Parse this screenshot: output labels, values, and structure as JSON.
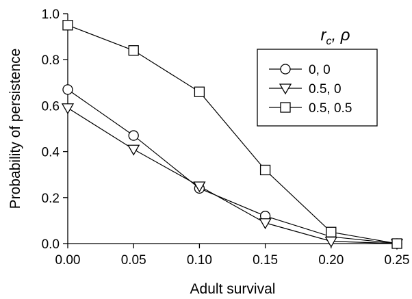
{
  "chart_data": {
    "type": "line",
    "title": "",
    "xlabel": "Adult survival",
    "ylabel": "Probability of persistence",
    "x": [
      0.0,
      0.05,
      0.1,
      0.15,
      0.2,
      0.25
    ],
    "x_tick_labels": [
      "0.00",
      "0.05",
      "0.10",
      "0.15",
      "0.20",
      "0.25"
    ],
    "xlim": [
      0.0,
      0.25
    ],
    "y_ticks": [
      0.0,
      0.2,
      0.4,
      0.6,
      0.8,
      1.0
    ],
    "y_tick_labels": [
      "0.0",
      "0.2",
      "0.4",
      "0.6",
      "0.8",
      "1.0"
    ],
    "ylim": [
      0.0,
      1.0
    ],
    "grid": false,
    "legend": {
      "title_r": "r",
      "title_sub": "c",
      "title_rest": ", ρ",
      "placement": "top-right"
    },
    "series": [
      {
        "name": "0, 0",
        "marker": "circle",
        "values": [
          0.67,
          0.47,
          0.24,
          0.12,
          0.03,
          0.0
        ]
      },
      {
        "name": "0.5, 0",
        "marker": "triangle-down",
        "values": [
          0.59,
          0.41,
          0.25,
          0.09,
          0.01,
          0.0
        ]
      },
      {
        "name": "0.5, 0.5",
        "marker": "square",
        "values": [
          0.95,
          0.84,
          0.66,
          0.32,
          0.05,
          0.0
        ]
      }
    ]
  }
}
